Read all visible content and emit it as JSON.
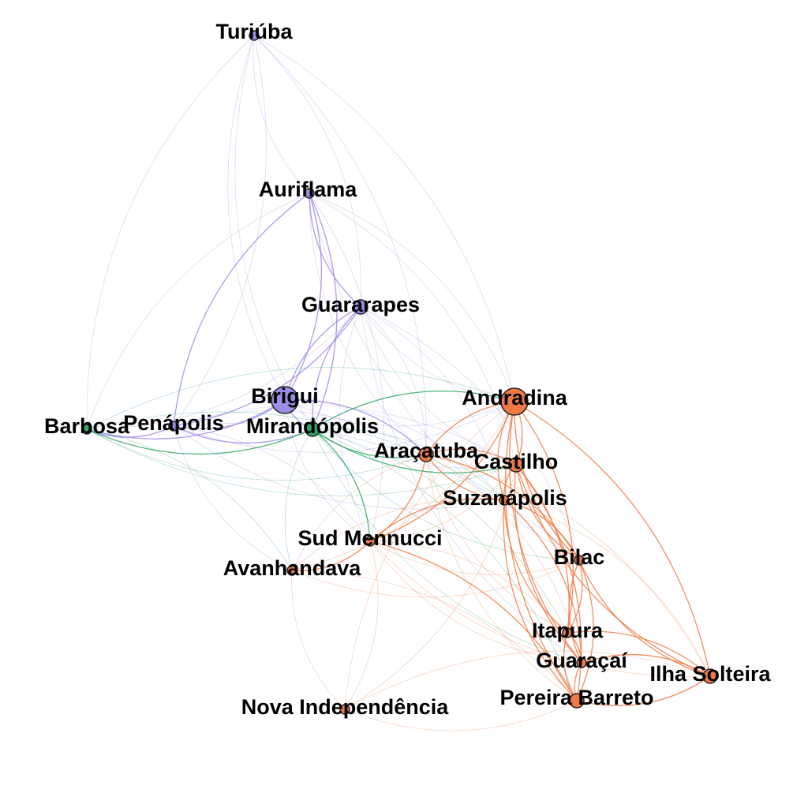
{
  "graph": {
    "type": "network",
    "groups": {
      "purple": "#9b8ee6",
      "green": "#2fa862",
      "orange": "#f07a45"
    },
    "nodes": [
      {
        "id": "turiuba",
        "label": "Turiúba",
        "group": "purple",
        "weight": 1
      },
      {
        "id": "auriflama",
        "label": "Auriflama",
        "group": "purple",
        "weight": 1
      },
      {
        "id": "guararapes",
        "label": "Guararapes",
        "group": "purple",
        "weight": 2
      },
      {
        "id": "birigui",
        "label": "Birigui",
        "group": "purple",
        "weight": 5
      },
      {
        "id": "penapolis",
        "label": "Penápolis",
        "group": "purple",
        "weight": 1
      },
      {
        "id": "barbosa",
        "label": "Barbosa",
        "group": "green",
        "weight": 1
      },
      {
        "id": "mirandopolis",
        "label": "Mirandópolis",
        "group": "green",
        "weight": 2
      },
      {
        "id": "andradina",
        "label": "Andradina",
        "group": "orange",
        "weight": 5
      },
      {
        "id": "aracatuba",
        "label": "Araçatuba",
        "group": "orange",
        "weight": 2
      },
      {
        "id": "castilho",
        "label": "Castilho",
        "group": "orange",
        "weight": 2
      },
      {
        "id": "suzanapolis",
        "label": "Suzanápolis",
        "group": "orange",
        "weight": 1
      },
      {
        "id": "sudmennucci",
        "label": "Sud Mennucci",
        "group": "orange",
        "weight": 1
      },
      {
        "id": "avanhandava",
        "label": "Avanhandava",
        "group": "orange",
        "weight": 1
      },
      {
        "id": "bilac",
        "label": "Bilac",
        "group": "orange",
        "weight": 1
      },
      {
        "id": "itapura",
        "label": "Itapura",
        "group": "orange",
        "weight": 1
      },
      {
        "id": "guaracai",
        "label": "Guaraçaí",
        "group": "orange",
        "weight": 1
      },
      {
        "id": "ilhasolteira",
        "label": "Ilha Solteira",
        "group": "orange",
        "weight": 2
      },
      {
        "id": "pereirabarreto",
        "label": "Pereira Barreto",
        "group": "orange",
        "weight": 2
      },
      {
        "id": "novaindependencia",
        "label": "Nova Independência",
        "group": "orange",
        "weight": 1
      }
    ],
    "edges": [
      [
        "turiuba",
        "auriflama",
        1
      ],
      [
        "turiuba",
        "guararapes",
        1
      ],
      [
        "turiuba",
        "birigui",
        1
      ],
      [
        "turiuba",
        "penapolis",
        1
      ],
      [
        "turiuba",
        "mirandopolis",
        1
      ],
      [
        "turiuba",
        "andradina",
        1
      ],
      [
        "turiuba",
        "barbosa",
        1
      ],
      [
        "turiuba",
        "aracatuba",
        1
      ],
      [
        "auriflama",
        "guararapes",
        2
      ],
      [
        "auriflama",
        "birigui",
        2
      ],
      [
        "auriflama",
        "penapolis",
        2
      ],
      [
        "auriflama",
        "mirandopolis",
        2
      ],
      [
        "auriflama",
        "barbosa",
        1
      ],
      [
        "auriflama",
        "andradina",
        1
      ],
      [
        "auriflama",
        "aracatuba",
        1
      ],
      [
        "auriflama",
        "castilho",
        1
      ],
      [
        "auriflama",
        "bilac",
        1
      ],
      [
        "auriflama",
        "sudmennucci",
        1
      ],
      [
        "guararapes",
        "birigui",
        2
      ],
      [
        "guararapes",
        "penapolis",
        2
      ],
      [
        "guararapes",
        "mirandopolis",
        2
      ],
      [
        "guararapes",
        "barbosa",
        1
      ],
      [
        "guararapes",
        "andradina",
        1
      ],
      [
        "guararapes",
        "aracatuba",
        1
      ],
      [
        "guararapes",
        "castilho",
        1
      ],
      [
        "guararapes",
        "suzanapolis",
        1
      ],
      [
        "guararapes",
        "sudmennucci",
        1
      ],
      [
        "guararapes",
        "bilac",
        1
      ],
      [
        "guararapes",
        "guaracai",
        1
      ],
      [
        "birigui",
        "penapolis",
        2
      ],
      [
        "birigui",
        "mirandopolis",
        2
      ],
      [
        "birigui",
        "barbosa",
        2
      ],
      [
        "birigui",
        "andradina",
        1
      ],
      [
        "birigui",
        "aracatuba",
        2
      ],
      [
        "birigui",
        "castilho",
        1
      ],
      [
        "birigui",
        "suzanapolis",
        1
      ],
      [
        "birigui",
        "sudmennucci",
        1
      ],
      [
        "penapolis",
        "barbosa",
        2
      ],
      [
        "penapolis",
        "mirandopolis",
        2
      ],
      [
        "penapolis",
        "aracatuba",
        1
      ],
      [
        "penapolis",
        "andradina",
        1
      ],
      [
        "penapolis",
        "sudmennucci",
        1
      ],
      [
        "penapolis",
        "avanhandava",
        1
      ],
      [
        "penapolis",
        "castilho",
        1
      ],
      [
        "penapolis",
        "suzanapolis",
        1
      ],
      [
        "penapolis",
        "bilac",
        1
      ],
      [
        "barbosa",
        "mirandopolis",
        2
      ],
      [
        "barbosa",
        "avanhandava",
        1
      ],
      [
        "barbosa",
        "aracatuba",
        1
      ],
      [
        "barbosa",
        "andradina",
        1
      ],
      [
        "barbosa",
        "castilho",
        1
      ],
      [
        "barbosa",
        "suzanapolis",
        1
      ],
      [
        "mirandopolis",
        "aracatuba",
        2
      ],
      [
        "mirandopolis",
        "andradina",
        2
      ],
      [
        "mirandopolis",
        "castilho",
        2
      ],
      [
        "mirandopolis",
        "sudmennucci",
        2
      ],
      [
        "mirandopolis",
        "avanhandava",
        1
      ],
      [
        "mirandopolis",
        "suzanapolis",
        1
      ],
      [
        "mirandopolis",
        "bilac",
        1
      ],
      [
        "mirandopolis",
        "itapura",
        1
      ],
      [
        "mirandopolis",
        "guaracai",
        1
      ],
      [
        "mirandopolis",
        "pereirabarreto",
        1
      ],
      [
        "andradina",
        "aracatuba",
        2
      ],
      [
        "andradina",
        "castilho",
        2
      ],
      [
        "andradina",
        "suzanapolis",
        2
      ],
      [
        "andradina",
        "sudmennucci",
        2
      ],
      [
        "andradina",
        "bilac",
        2
      ],
      [
        "andradina",
        "itapura",
        2
      ],
      [
        "andradina",
        "guaracai",
        2
      ],
      [
        "andradina",
        "ilhasolteira",
        2
      ],
      [
        "andradina",
        "pereirabarreto",
        2
      ],
      [
        "andradina",
        "avanhandava",
        1
      ],
      [
        "andradina",
        "novaindependencia",
        1
      ],
      [
        "aracatuba",
        "castilho",
        2
      ],
      [
        "aracatuba",
        "suzanapolis",
        2
      ],
      [
        "aracatuba",
        "sudmennucci",
        2
      ],
      [
        "aracatuba",
        "avanhandava",
        1
      ],
      [
        "aracatuba",
        "bilac",
        2
      ],
      [
        "aracatuba",
        "itapura",
        1
      ],
      [
        "aracatuba",
        "guaracai",
        1
      ],
      [
        "aracatuba",
        "pereirabarreto",
        1
      ],
      [
        "aracatuba",
        "ilhasolteira",
        1
      ],
      [
        "castilho",
        "suzanapolis",
        2
      ],
      [
        "castilho",
        "sudmennucci",
        1
      ],
      [
        "castilho",
        "bilac",
        2
      ],
      [
        "castilho",
        "itapura",
        2
      ],
      [
        "castilho",
        "guaracai",
        2
      ],
      [
        "castilho",
        "pereirabarreto",
        2
      ],
      [
        "castilho",
        "ilhasolteira",
        2
      ],
      [
        "castilho",
        "novaindependencia",
        1
      ],
      [
        "suzanapolis",
        "sudmennucci",
        2
      ],
      [
        "suzanapolis",
        "bilac",
        2
      ],
      [
        "suzanapolis",
        "itapura",
        2
      ],
      [
        "suzanapolis",
        "guaracai",
        2
      ],
      [
        "suzanapolis",
        "pereirabarreto",
        2
      ],
      [
        "suzanapolis",
        "ilhasolteira",
        1
      ],
      [
        "suzanapolis",
        "avanhandava",
        1
      ],
      [
        "sudmennucci",
        "avanhandava",
        2
      ],
      [
        "sudmennucci",
        "bilac",
        1
      ],
      [
        "sudmennucci",
        "itapura",
        1
      ],
      [
        "sudmennucci",
        "guaracai",
        1
      ],
      [
        "sudmennucci",
        "pereirabarreto",
        2
      ],
      [
        "sudmennucci",
        "ilhasolteira",
        1
      ],
      [
        "sudmennucci",
        "novaindependencia",
        1
      ],
      [
        "avanhandava",
        "bilac",
        1
      ],
      [
        "avanhandava",
        "pereirabarreto",
        1
      ],
      [
        "avanhandava",
        "novaindependencia",
        1
      ],
      [
        "bilac",
        "itapura",
        2
      ],
      [
        "bilac",
        "guaracai",
        2
      ],
      [
        "bilac",
        "pereirabarreto",
        2
      ],
      [
        "bilac",
        "ilhasolteira",
        2
      ],
      [
        "itapura",
        "guaracai",
        2
      ],
      [
        "itapura",
        "pereirabarreto",
        2
      ],
      [
        "itapura",
        "ilhasolteira",
        2
      ],
      [
        "guaracai",
        "pereirabarreto",
        2
      ],
      [
        "guaracai",
        "ilhasolteira",
        2
      ],
      [
        "pereirabarreto",
        "ilhasolteira",
        2
      ],
      [
        "pereirabarreto",
        "novaindependencia",
        1
      ],
      [
        "ilhasolteira",
        "novaindependencia",
        1
      ]
    ]
  }
}
